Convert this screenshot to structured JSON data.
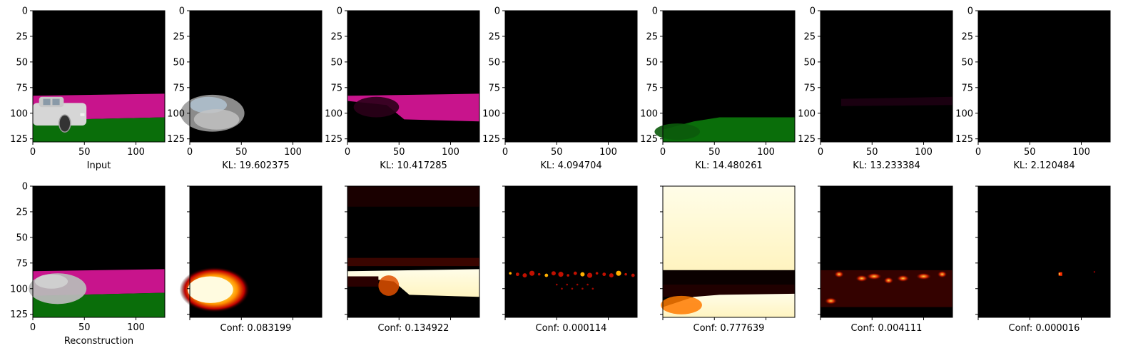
{
  "chart_data": {
    "type": "image-grid",
    "top_row": {
      "images": [
        {
          "label": "Input",
          "kind": "scene-input"
        },
        {
          "label": "KL: 19.602375",
          "kind": "slot-car"
        },
        {
          "label": "KL: 10.417285",
          "kind": "slot-pink"
        },
        {
          "label": "KL: 4.094704",
          "kind": "slot-empty"
        },
        {
          "label": "KL: 14.480261",
          "kind": "slot-green"
        },
        {
          "label": "KL: 13.233384",
          "kind": "slot-faint"
        },
        {
          "label": "KL: 2.120484",
          "kind": "slot-empty"
        }
      ],
      "x_ticks": [
        "0",
        "50",
        "100"
      ],
      "y_ticks": [
        "0",
        "25",
        "50",
        "75",
        "100",
        "125"
      ]
    },
    "bottom_row": {
      "images": [
        {
          "label": "Reconstruction",
          "kind": "scene-recon"
        },
        {
          "label": "Conf: 0.083199",
          "kind": "mask-car"
        },
        {
          "label": "Conf: 0.134922",
          "kind": "mask-pink"
        },
        {
          "label": "Conf: 0.000114",
          "kind": "mask-sparse"
        },
        {
          "label": "Conf: 0.777639",
          "kind": "mask-green"
        },
        {
          "label": "Conf: 0.004111",
          "kind": "mask-band"
        },
        {
          "label": "Conf: 0.000016",
          "kind": "mask-dot"
        }
      ],
      "x_ticks": [
        "0",
        "50",
        "100"
      ],
      "y_ticks": [
        "0",
        "25",
        "50",
        "75",
        "100",
        "125"
      ]
    },
    "image_size": [
      128,
      128
    ],
    "colormap": "hot",
    "colors": {
      "magenta": "#c8148c",
      "green": "#0a6e0a",
      "black": "#000000",
      "car": "#d6d6d6"
    }
  }
}
